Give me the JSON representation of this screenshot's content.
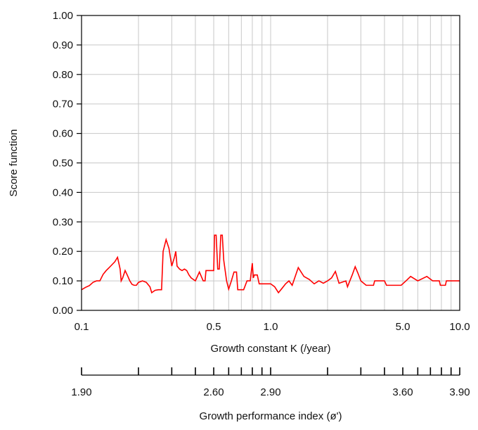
{
  "chart_data": {
    "type": "line",
    "title": "",
    "ylabel": "Score function",
    "xlabel": "Growth constant K (/year)",
    "x2label": "Growth performance index (ø')",
    "x_scale": "log",
    "xlim": [
      0.1,
      10.0
    ],
    "ylim": [
      0.0,
      1.0
    ],
    "grid": true,
    "x_ticks": [
      {
        "value": 0.1,
        "label": "0.1"
      },
      {
        "value": 0.5,
        "label": "0.5"
      },
      {
        "value": 1.0,
        "label": "1.0"
      },
      {
        "value": 5.0,
        "label": "5.0"
      },
      {
        "value": 10.0,
        "label": "10.0"
      }
    ],
    "x_gridlines": [
      0.2,
      0.3,
      0.4,
      0.5,
      0.6,
      0.7,
      0.8,
      0.9,
      1.0,
      2.0,
      3.0,
      4.0,
      5.0,
      6.0,
      7.0,
      8.0,
      9.0
    ],
    "y_ticks": [
      {
        "value": 0.0,
        "label": "0.00"
      },
      {
        "value": 0.1,
        "label": "0.10"
      },
      {
        "value": 0.2,
        "label": "0.20"
      },
      {
        "value": 0.3,
        "label": "0.30"
      },
      {
        "value": 0.4,
        "label": "0.40"
      },
      {
        "value": 0.5,
        "label": "0.50"
      },
      {
        "value": 0.6,
        "label": "0.60"
      },
      {
        "value": 0.7,
        "label": "0.70"
      },
      {
        "value": 0.8,
        "label": "0.80"
      },
      {
        "value": 0.9,
        "label": "0.90"
      },
      {
        "value": 1.0,
        "label": "1.00"
      }
    ],
    "x2_ticks": [
      {
        "value": 0.1,
        "label": "1.90"
      },
      {
        "value": 0.5,
        "label": "2.60"
      },
      {
        "value": 1.0,
        "label": "2.90"
      },
      {
        "value": 5.0,
        "label": "3.60"
      },
      {
        "value": 10.0,
        "label": "3.90"
      }
    ],
    "x2_minor_ticks": [
      0.2,
      0.3,
      0.4,
      0.6,
      0.7,
      0.8,
      0.9,
      2.0,
      3.0,
      4.0,
      6.0,
      7.0,
      8.0,
      9.0
    ],
    "series": [
      {
        "color": "#ff0000",
        "points": [
          [
            0.1,
            0.07
          ],
          [
            0.105,
            0.078
          ],
          [
            0.11,
            0.084
          ],
          [
            0.115,
            0.095
          ],
          [
            0.12,
            0.1
          ],
          [
            0.125,
            0.1
          ],
          [
            0.13,
            0.122
          ],
          [
            0.135,
            0.135
          ],
          [
            0.14,
            0.145
          ],
          [
            0.15,
            0.165
          ],
          [
            0.155,
            0.18
          ],
          [
            0.16,
            0.14
          ],
          [
            0.162,
            0.1
          ],
          [
            0.165,
            0.11
          ],
          [
            0.17,
            0.135
          ],
          [
            0.175,
            0.118
          ],
          [
            0.18,
            0.1
          ],
          [
            0.185,
            0.088
          ],
          [
            0.19,
            0.085
          ],
          [
            0.195,
            0.085
          ],
          [
            0.2,
            0.095
          ],
          [
            0.21,
            0.1
          ],
          [
            0.22,
            0.095
          ],
          [
            0.23,
            0.08
          ],
          [
            0.235,
            0.06
          ],
          [
            0.245,
            0.068
          ],
          [
            0.255,
            0.07
          ],
          [
            0.265,
            0.07
          ],
          [
            0.27,
            0.2
          ],
          [
            0.28,
            0.24
          ],
          [
            0.29,
            0.21
          ],
          [
            0.3,
            0.15
          ],
          [
            0.31,
            0.18
          ],
          [
            0.315,
            0.2
          ],
          [
            0.32,
            0.15
          ],
          [
            0.33,
            0.14
          ],
          [
            0.34,
            0.135
          ],
          [
            0.35,
            0.14
          ],
          [
            0.36,
            0.135
          ],
          [
            0.37,
            0.12
          ],
          [
            0.38,
            0.11
          ],
          [
            0.4,
            0.1
          ],
          [
            0.42,
            0.13
          ],
          [
            0.44,
            0.1
          ],
          [
            0.45,
            0.1
          ],
          [
            0.455,
            0.135
          ],
          [
            0.48,
            0.135
          ],
          [
            0.5,
            0.135
          ],
          [
            0.505,
            0.255
          ],
          [
            0.515,
            0.255
          ],
          [
            0.525,
            0.14
          ],
          [
            0.535,
            0.14
          ],
          [
            0.545,
            0.255
          ],
          [
            0.555,
            0.255
          ],
          [
            0.565,
            0.17
          ],
          [
            0.585,
            0.1
          ],
          [
            0.6,
            0.072
          ],
          [
            0.62,
            0.1
          ],
          [
            0.64,
            0.13
          ],
          [
            0.66,
            0.13
          ],
          [
            0.67,
            0.07
          ],
          [
            0.72,
            0.07
          ],
          [
            0.75,
            0.1
          ],
          [
            0.78,
            0.1
          ],
          [
            0.8,
            0.16
          ],
          [
            0.81,
            0.11
          ],
          [
            0.82,
            0.12
          ],
          [
            0.85,
            0.12
          ],
          [
            0.87,
            0.09
          ],
          [
            1.0,
            0.09
          ],
          [
            1.05,
            0.08
          ],
          [
            1.1,
            0.06
          ],
          [
            1.15,
            0.075
          ],
          [
            1.2,
            0.09
          ],
          [
            1.25,
            0.1
          ],
          [
            1.3,
            0.085
          ],
          [
            1.4,
            0.145
          ],
          [
            1.5,
            0.115
          ],
          [
            1.6,
            0.105
          ],
          [
            1.7,
            0.09
          ],
          [
            1.8,
            0.1
          ],
          [
            1.9,
            0.092
          ],
          [
            2.0,
            0.1
          ],
          [
            2.1,
            0.11
          ],
          [
            2.2,
            0.132
          ],
          [
            2.3,
            0.092
          ],
          [
            2.5,
            0.1
          ],
          [
            2.55,
            0.08
          ],
          [
            2.7,
            0.12
          ],
          [
            2.8,
            0.148
          ],
          [
            2.9,
            0.125
          ],
          [
            3.0,
            0.1
          ],
          [
            3.2,
            0.085
          ],
          [
            3.5,
            0.085
          ],
          [
            3.55,
            0.1
          ],
          [
            4.0,
            0.1
          ],
          [
            4.1,
            0.085
          ],
          [
            4.9,
            0.085
          ],
          [
            5.2,
            0.1
          ],
          [
            5.5,
            0.115
          ],
          [
            6.0,
            0.1
          ],
          [
            6.7,
            0.115
          ],
          [
            7.2,
            0.1
          ],
          [
            7.8,
            0.1
          ],
          [
            7.9,
            0.085
          ],
          [
            8.4,
            0.085
          ],
          [
            8.5,
            0.1
          ],
          [
            10.0,
            0.1
          ]
        ]
      }
    ]
  }
}
